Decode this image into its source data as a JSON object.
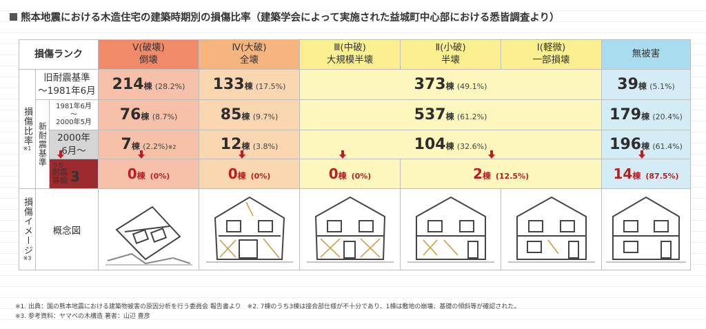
{
  "title": "熊本地震における木造住宅の建築時期別の損傷比率（建築学会によって実施された益城町中心部における悉皆調査より）",
  "header": {
    "rank_label": "損傷ランク",
    "cols": [
      {
        "roman": "Ⅴ(破壊)",
        "name": "倒壊"
      },
      {
        "roman": "Ⅳ(大破)",
        "name": "全壊"
      },
      {
        "roman": "Ⅲ(中破)",
        "name": "大規模半壊"
      },
      {
        "roman": "Ⅱ(小破)",
        "name": "半壊"
      },
      {
        "roman": "Ⅰ(軽微)",
        "name": "一部損壊"
      },
      {
        "roman": "",
        "name": "無被害"
      }
    ]
  },
  "side": {
    "ratio": "損傷比率",
    "ratio_note": "※1",
    "new_std": "新耐震基準",
    "image": "損傷イメージ",
    "image_note": "※3",
    "concept": "概念図"
  },
  "rows": {
    "r1": {
      "label": "旧耐震基準",
      "sub": "～1981年6月",
      "v5": "214",
      "p5": "(28.2%)",
      "v4": "133",
      "p4": "(17.5%)",
      "v321": "373",
      "p321": "(49.1%)",
      "vn": "39",
      "pn": "(5.1%)"
    },
    "r2": {
      "label": "1981年6月",
      "tilde": "～",
      "label2": "2000年5月",
      "v5": "76",
      "p5": "(8.7%)",
      "v4": "85",
      "p4": "(9.7%)",
      "v321": "537",
      "p321": "(61.2%)",
      "vn": "179",
      "pn": "(20.4%)"
    },
    "r3": {
      "label": "2000年",
      "sub": "6月～",
      "v5": "7",
      "p5": "(2.2%)",
      "note5": "※2",
      "v4": "12",
      "p4": "(3.8%)",
      "v321": "104",
      "p321": "(32.6%)",
      "vn": "196",
      "pn": "(61.4%)"
    },
    "r4": {
      "pre": "うち",
      "label": "耐震",
      "label2": "等級",
      "grade": "3",
      "v5": "0",
      "p5": "(0%)",
      "v4": "0",
      "p4": "(0%)",
      "v3": "0",
      "p3": "(0%)",
      "v21": "2",
      "p21": "(12.5%)",
      "vn": "14",
      "pn": "(87.5%)"
    }
  },
  "unit": "棟",
  "footnotes": [
    "※1. 出典：国の熊本地震における建築物被害の原因分析を行う委員会 報告書より　※2. 7棟のうち3棟は接合部仕様が不十分であり、1棟は敷地の崩壊、基礎の傾斜等が確認された。",
    "※3. 参考資料：ヤマベの木構造 著者：山辺 豊彦"
  ],
  "colors": {
    "collapse": "#f08a68",
    "severe": "#f6b57e",
    "moderate": "#fbf08f",
    "none": "#a9dcef",
    "accent": "#b61f24"
  }
}
